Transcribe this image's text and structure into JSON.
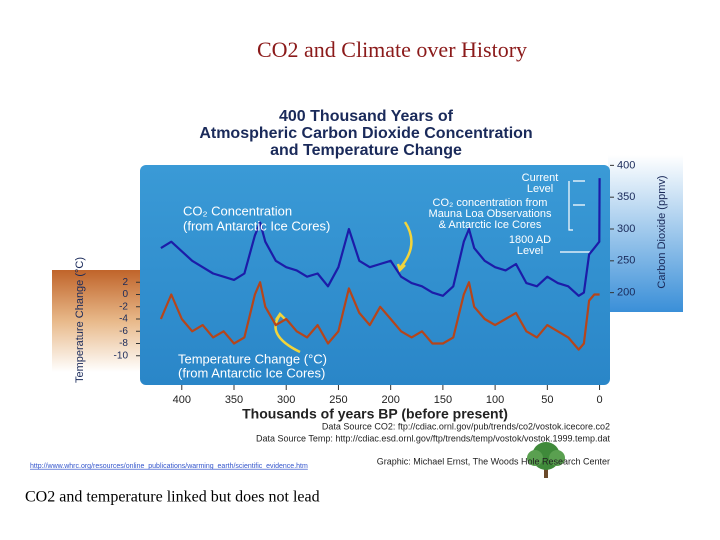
{
  "slide": {
    "title": "CO2 and Climate over History",
    "url": "http://www.whrc.org/resources/online_publications/warming_earth/scientific_evidence.htm",
    "caption": "CO2 and temperature linked but does not lead"
  },
  "chart_data": {
    "type": "line",
    "title": [
      "400 Thousand Years of",
      "Atmospheric Carbon Dioxide Concentration",
      "and Temperature Change"
    ],
    "xlabel": "Thousands of years BP (before present)",
    "ylabel": "Temperature Change (°C)",
    "y2label": "Carbon Dioxide (ppmv)",
    "x": [
      420,
      410,
      400,
      390,
      380,
      370,
      360,
      350,
      340,
      330,
      325,
      320,
      310,
      300,
      290,
      280,
      270,
      260,
      250,
      240,
      230,
      220,
      210,
      200,
      190,
      180,
      170,
      160,
      150,
      140,
      130,
      125,
      120,
      110,
      100,
      90,
      80,
      70,
      60,
      50,
      40,
      30,
      20,
      15,
      10,
      5,
      0.2,
      0
    ],
    "series": [
      {
        "name": "CO₂ Concentration",
        "color": "#1c1ca8",
        "axis": "y2",
        "values": [
          270,
          280,
          265,
          250,
          240,
          230,
          225,
          220,
          230,
          290,
          310,
          280,
          250,
          240,
          235,
          225,
          230,
          210,
          240,
          300,
          250,
          240,
          245,
          250,
          225,
          215,
          210,
          200,
          195,
          210,
          280,
          300,
          270,
          250,
          240,
          235,
          245,
          215,
          210,
          225,
          215,
          210,
          195,
          200,
          260,
          270,
          280,
          380
        ]
      },
      {
        "name": "Temperature Change",
        "color": "#b5451b",
        "axis": "y",
        "values": [
          -4,
          0,
          -4,
          -6,
          -5,
          -7,
          -6,
          -8,
          -7,
          0,
          2,
          -2,
          -5,
          -4,
          -6,
          -7,
          -5,
          -8,
          -6,
          1,
          -3,
          -5,
          -2,
          -4,
          -6,
          -7,
          -6,
          -8,
          -8,
          -7,
          0,
          2,
          -2,
          -4,
          -5,
          -4,
          -3,
          -6,
          -7,
          -5,
          -6,
          -7,
          -9,
          -8,
          -1,
          0,
          0,
          0
        ]
      }
    ],
    "xlim": [
      440,
      -10
    ],
    "xticks": [
      400,
      350,
      300,
      250,
      200,
      150,
      100,
      50,
      0
    ],
    "ylim": [
      -12,
      4
    ],
    "yticks": [
      2,
      0,
      -2,
      -4,
      -6,
      -8,
      -10
    ],
    "y2lim": [
      190,
      410
    ],
    "y2ticks": [
      200,
      250,
      300,
      350,
      400
    ],
    "annotations": [
      [
        "CO₂ Concentration",
        "(from Antarctic Ice Cores)"
      ],
      [
        "Temperature Change (°C)",
        "(from Antarctic Ice Cores)"
      ],
      [
        "Current",
        "Level"
      ],
      [
        "CO₂ concentration from",
        "Mauna Loa Observations",
        "& Antarctic Ice Cores"
      ],
      [
        "1800 AD",
        "Level"
      ]
    ],
    "sources": [
      "Data Source CO2: ftp://cdiac.ornl.gov/pub/trends/co2/vostok.icecore.co2",
      "Data Source Temp: http://cdiac.esd.ornl.gov/ftp/trends/temp/vostok/vostok.1999.temp.dat",
      "Graphic: Michael Ernst, The Woods Hole Research Center"
    ]
  }
}
